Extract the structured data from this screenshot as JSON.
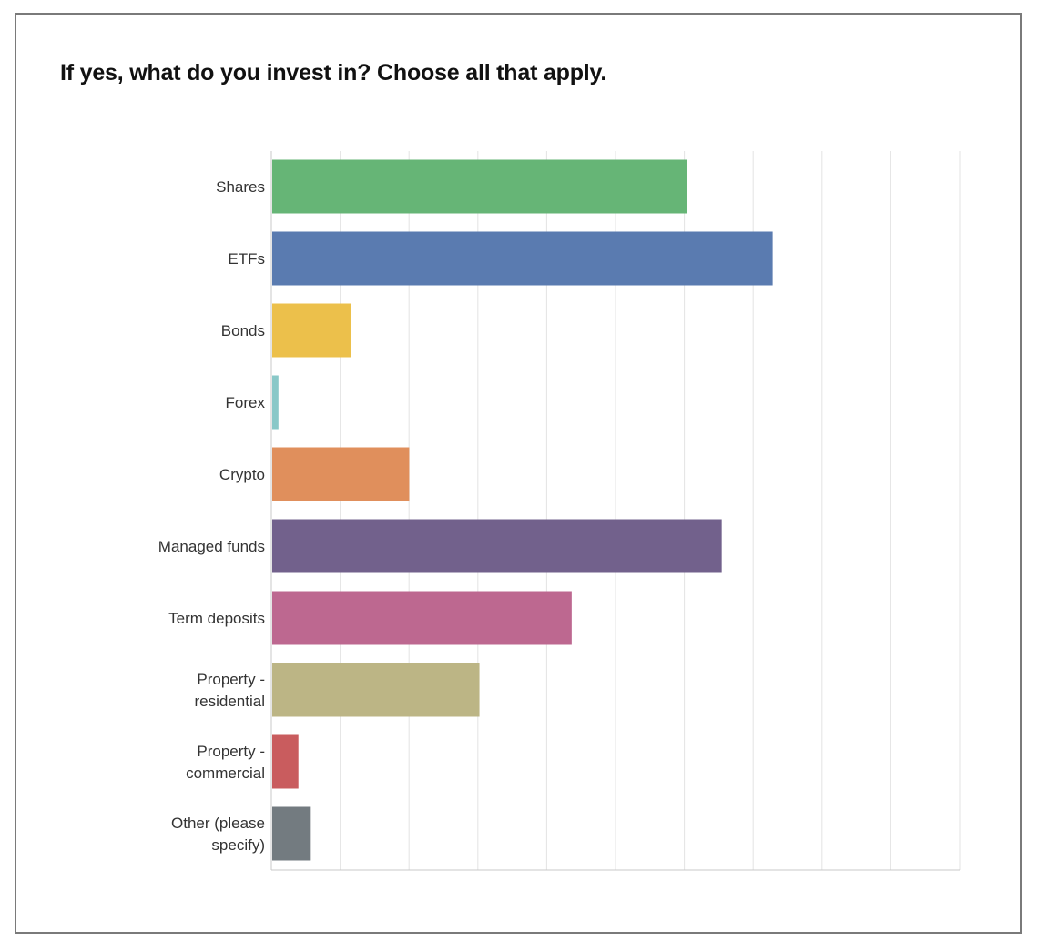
{
  "chart_data": {
    "type": "bar",
    "orientation": "horizontal",
    "title": "If yes, what do you invest in? Choose all that apply.",
    "categories": [
      "Shares",
      "ETFs",
      "Bonds",
      "Forex",
      "Crypto",
      "Managed funds",
      "Term deposits",
      "Property - residential",
      "Property - commercial",
      "Other (please specify)"
    ],
    "category_lines": [
      [
        "Shares"
      ],
      [
        "ETFs"
      ],
      [
        "Bonds"
      ],
      [
        "Forex"
      ],
      [
        "Crypto"
      ],
      [
        "Managed funds"
      ],
      [
        "Term deposits"
      ],
      [
        "Property -",
        "residential"
      ],
      [
        "Property -",
        "commercial"
      ],
      [
        "Other (please",
        "specify)"
      ]
    ],
    "values": [
      60.2,
      72.7,
      11.4,
      0.9,
      19.9,
      65.3,
      43.5,
      30.1,
      3.8,
      5.6
    ],
    "colors": [
      "#66b576",
      "#5a7bb0",
      "#ecc04b",
      "#89c8c8",
      "#e08f5c",
      "#72618c",
      "#bd6890",
      "#bcb585",
      "#c95c5e",
      "#737b80"
    ],
    "xlim": [
      0,
      100
    ],
    "gridlines": 10,
    "grid": true,
    "xlabel": "",
    "ylabel": ""
  }
}
